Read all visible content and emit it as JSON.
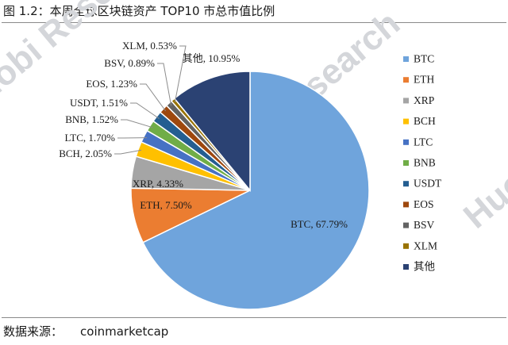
{
  "header": {
    "title": "图 1.2：本周全球区块链资产 TOP10 市总市值比例"
  },
  "footer": {
    "source_label": "数据来源：",
    "source_value": "coinmarketcap"
  },
  "watermark": {
    "text": "Huobi Research"
  },
  "chart_data": {
    "type": "pie",
    "title": "",
    "categories": [
      "BTC",
      "ETH",
      "XRP",
      "BCH",
      "LTC",
      "BNB",
      "USDT",
      "EOS",
      "BSV",
      "XLM",
      "其他"
    ],
    "values": [
      67.79,
      7.5,
      4.33,
      2.05,
      1.7,
      1.52,
      1.51,
      1.23,
      0.89,
      0.53,
      10.95
    ],
    "data_labels": [
      "BTC, 67.79%",
      "ETH, 7.50%",
      "XRP, 4.33%",
      "BCH, 2.05%",
      "LTC, 1.70%",
      "BNB, 1.52%",
      "USDT, 1.51%",
      "EOS, 1.23%",
      "BSV, 0.89%",
      "XLM, 0.53%",
      "其他, 10.95%"
    ],
    "colors": [
      "#6FA4DC",
      "#EB7D31",
      "#A5A5A5",
      "#FFC000",
      "#4672C4",
      "#70AD47",
      "#245E91",
      "#9E480E",
      "#636363",
      "#997300",
      "#2B4273"
    ],
    "legend_position": "right",
    "unit": "%"
  }
}
